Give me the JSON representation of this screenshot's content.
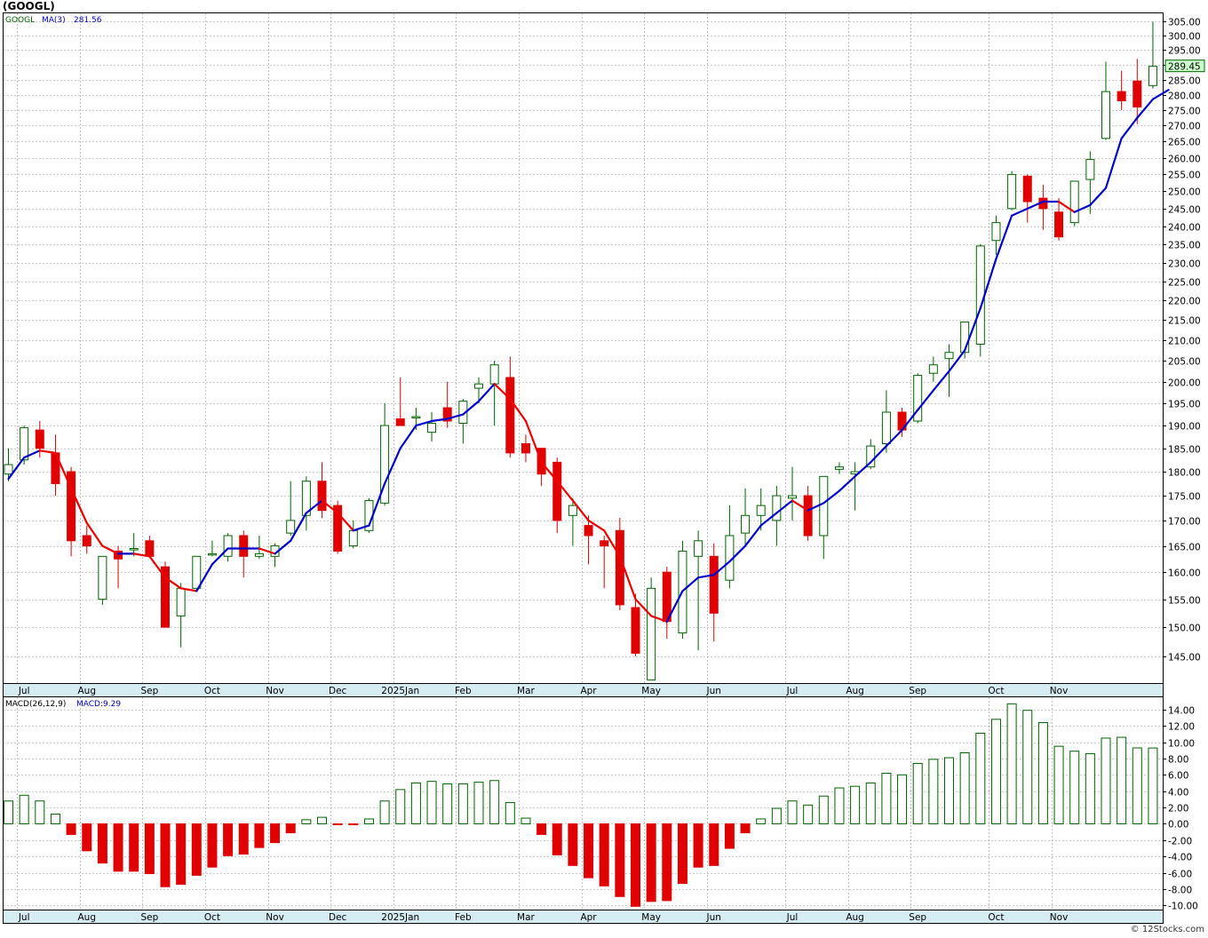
{
  "header": {
    "title": "(GOOGL)"
  },
  "price_panel": {
    "legend_symbol": "GOOGL",
    "legend_ma_label": "MA(3)",
    "legend_ma_value": "281.56",
    "last_price_label": "289.45"
  },
  "macd_panel": {
    "legend_label": "MACD(26,12,9)",
    "legend_value": "MACD:9.29"
  },
  "footer": {
    "credit": "© 12Stocks.com"
  },
  "colors": {
    "up_candle": "#006400",
    "down_candle": "#e00000",
    "ma_up": "#0000cc",
    "ma_down": "#ee0000",
    "grid": "#9a9a9a",
    "last_price_bg": "#ccffcc"
  },
  "chart_data": [
    {
      "type": "candlestick",
      "title": "GOOGL",
      "x_axis_labels": [
        "Jul",
        "Aug",
        "Sep",
        "Oct",
        "Nov",
        "Dec",
        "2025Jan",
        "Feb",
        "Mar",
        "Apr",
        "May",
        "Jun",
        "Jul",
        "Aug",
        "Sep",
        "Oct",
        "Nov"
      ],
      "x_axis_label_weeks": [
        1,
        5,
        9,
        13,
        17,
        21,
        25,
        29,
        33,
        37,
        41,
        45,
        50,
        54,
        58,
        63,
        67
      ],
      "y_ticks": [
        145,
        150,
        155,
        160,
        165,
        170,
        175,
        180,
        185,
        190,
        195,
        200,
        205,
        210,
        215,
        220,
        225,
        230,
        235,
        240,
        245,
        250,
        255,
        260,
        265,
        270,
        275,
        280,
        285,
        290,
        295,
        300,
        305
      ],
      "y_log_scale": true,
      "ylim": [
        140.5,
        308
      ],
      "grid": true,
      "series": [
        {
          "name": "GOOGL",
          "kind": "ohlc",
          "ohlc": [
            [
              179.5,
              185,
              178,
              181.5
            ],
            [
              182.5,
              190,
              181.5,
              189.5
            ],
            [
              189,
              191,
              183,
              185
            ],
            [
              184,
              188,
              175,
              177.5
            ],
            [
              180,
              181,
              163,
              166
            ],
            [
              167,
              169,
              163.5,
              165
            ],
            [
              155,
              163,
              154,
              163
            ],
            [
              164,
              165,
              157,
              162.5
            ],
            [
              164.5,
              167.5,
              163,
              164.5
            ],
            [
              166,
              167,
              163,
              163
            ],
            [
              161,
              162,
              150,
              150
            ],
            [
              152,
              158,
              146.5,
              157
            ],
            [
              157,
              163,
              156.5,
              163
            ],
            [
              163.5,
              166,
              163,
              163.5
            ],
            [
              163,
              167.5,
              162,
              167
            ],
            [
              167,
              168,
              159,
              163
            ],
            [
              163,
              167,
              162.5,
              163.5
            ],
            [
              163,
              165.5,
              161,
              165
            ],
            [
              167.5,
              178,
              167,
              170
            ],
            [
              171,
              179,
              168,
              178
            ],
            [
              178,
              182,
              170.5,
              172
            ],
            [
              173,
              174,
              163.5,
              164
            ],
            [
              165,
              170,
              164.5,
              168
            ],
            [
              168,
              174.5,
              167.5,
              174
            ],
            [
              173.5,
              195,
              173,
              190
            ],
            [
              191.5,
              201,
              190,
              190
            ],
            [
              192,
              194,
              189,
              192
            ],
            [
              188.5,
              193,
              186.5,
              190.5
            ],
            [
              194,
              200,
              189.5,
              191
            ],
            [
              190.5,
              196,
              186,
              195.5
            ],
            [
              198.5,
              201,
              195,
              199.5
            ],
            [
              199.5,
              205,
              190,
              204
            ],
            [
              201,
              206,
              183,
              184
            ],
            [
              186,
              188,
              182,
              184
            ],
            [
              185,
              185,
              177,
              179.5
            ],
            [
              182,
              183,
              167.5,
              170
            ],
            [
              171,
              174.5,
              165,
              173
            ],
            [
              169,
              171,
              161.5,
              167
            ],
            [
              166,
              167,
              157,
              165
            ],
            [
              168,
              170.5,
              153,
              154
            ],
            [
              153.5,
              156,
              145,
              145.5
            ],
            [
              141,
              159,
              141,
              157
            ],
            [
              160,
              161,
              148,
              151
            ],
            [
              149,
              166,
              148,
              164
            ],
            [
              163,
              168,
              146,
              166
            ],
            [
              163,
              165.5,
              147.5,
              152.5
            ],
            [
              158.5,
              173,
              157,
              167
            ],
            [
              167.5,
              176.5,
              165,
              171
            ],
            [
              171,
              176.5,
              168,
              173
            ],
            [
              170,
              177,
              165,
              175
            ],
            [
              174.5,
              181,
              170,
              175
            ],
            [
              175,
              177,
              166,
              167
            ],
            [
              167,
              179,
              162.5,
              179
            ],
            [
              180.5,
              182,
              179.5,
              181
            ],
            [
              179.5,
              182,
              172,
              180
            ],
            [
              181,
              187,
              180.5,
              185.5
            ],
            [
              186,
              198,
              184,
              193
            ],
            [
              193,
              194,
              187.5,
              189
            ],
            [
              191,
              202,
              190.5,
              201.5
            ],
            [
              202,
              206,
              200,
              204
            ],
            [
              205.5,
              209,
              196.5,
              207
            ],
            [
              207,
              214.5,
              205.5,
              214.5
            ],
            [
              209,
              235,
              206,
              234.5
            ],
            [
              236,
              243,
              232,
              241
            ],
            [
              245,
              256,
              244.5,
              255
            ],
            [
              254.5,
              255,
              241,
              247
            ],
            [
              248,
              252,
              239,
              245
            ],
            [
              244,
              248,
              236,
              237
            ],
            [
              241,
              253,
              240,
              253
            ],
            [
              253.5,
              262,
              243.5,
              259.5
            ],
            [
              266,
              291,
              265.5,
              281
            ],
            [
              281,
              288,
              275,
              278
            ],
            [
              284.5,
              292,
              270.5,
              276
            ],
            [
              283,
              305,
              282,
              289.45
            ]
          ]
        },
        {
          "name": "MA(3)",
          "kind": "line",
          "values": [
            178.5,
            183,
            184.5,
            184,
            176.5,
            169.5,
            165,
            163.5,
            163.5,
            163,
            159,
            157,
            156.5,
            161.5,
            164.5,
            164.5,
            164.5,
            163.5,
            166,
            171.5,
            174,
            171.5,
            168,
            169,
            177.5,
            185,
            190,
            191,
            191.5,
            192.5,
            195.5,
            199.5,
            196,
            191,
            182,
            178,
            174,
            170,
            168,
            163,
            155,
            152,
            151,
            156.5,
            159,
            159.5,
            162,
            165,
            169,
            171.5,
            174,
            172,
            173.5,
            176,
            179,
            182,
            185.5,
            189,
            193.5,
            198,
            202.5,
            207.5,
            218,
            231,
            243,
            245,
            247,
            247,
            244,
            246,
            251,
            266,
            272.5,
            278.5,
            281.56
          ],
          "color_rule": "blue when rising, red when falling"
        }
      ],
      "last_value_label": "289.45"
    },
    {
      "type": "bar",
      "title": "MACD(26,12,9)",
      "x_axis_labels": [
        "Jul",
        "Aug",
        "Sep",
        "Oct",
        "Nov",
        "Dec",
        "2025Jan",
        "Feb",
        "Mar",
        "Apr",
        "May",
        "Jun",
        "Jul",
        "Aug",
        "Sep",
        "Oct",
        "Nov"
      ],
      "y_ticks": [
        -10,
        -8,
        -6,
        -4,
        -2,
        0,
        2,
        4,
        6,
        8,
        10,
        12,
        14
      ],
      "ylim": [
        -10.5,
        15.5
      ],
      "grid": true,
      "series": [
        {
          "name": "MACD",
          "values": [
            2.8,
            3.5,
            2.8,
            1.2,
            -1.3,
            -3.3,
            -4.8,
            -5.8,
            -5.8,
            -6.1,
            -7.7,
            -7.4,
            -6.3,
            -5.3,
            -3.9,
            -3.7,
            -2.9,
            -2.3,
            -1.1,
            0.5,
            0.8,
            -0.1,
            -0.1,
            0.6,
            2.8,
            4.2,
            5.0,
            5.2,
            4.9,
            4.9,
            5.1,
            5.3,
            2.6,
            0.7,
            -1.3,
            -3.8,
            -5.1,
            -6.6,
            -7.6,
            -8.9,
            -10.1,
            -9.5,
            -9.4,
            -7.3,
            -5.3,
            -5.1,
            -3.0,
            -1.1,
            0.6,
            1.9,
            2.8,
            2.3,
            3.4,
            4.4,
            4.6,
            5.0,
            6.2,
            6.0,
            7.4,
            7.9,
            8.1,
            8.7,
            11.1,
            12.8,
            14.7,
            13.9,
            12.4,
            9.5,
            8.9,
            8.6,
            10.5,
            10.6,
            9.3,
            9.29
          ]
        }
      ],
      "last_value": 9.29
    }
  ]
}
